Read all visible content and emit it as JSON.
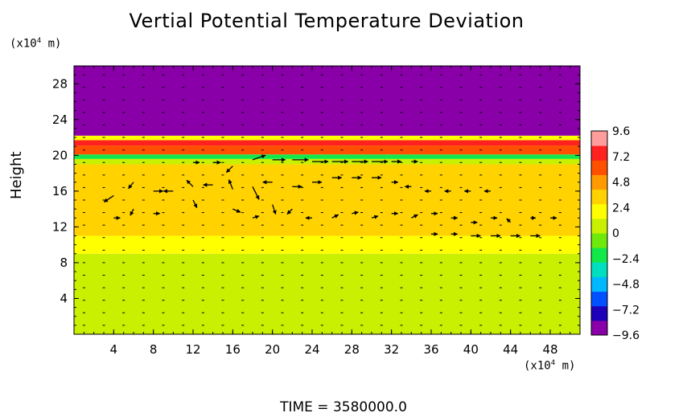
{
  "chart_data": {
    "type": "heatmap",
    "title": "Vertial Potential Temperature Deviation",
    "ylabel": "Height",
    "y_unit": "(x10",
    "y_unit_exp": "4",
    "y_unit_suffix": " m)",
    "x_unit": "(x10",
    "x_unit_exp": "4",
    "x_unit_suffix": " m)",
    "xlim": [
      0,
      51
    ],
    "ylim": [
      0,
      30
    ],
    "x_ticks": [
      4,
      8,
      12,
      16,
      20,
      24,
      28,
      32,
      36,
      40,
      44,
      48
    ],
    "x_tick_labels": [
      "4",
      "8",
      "12",
      "16",
      "20",
      "24",
      "28",
      "32",
      "36",
      "40",
      "44",
      "48"
    ],
    "y_ticks": [
      4,
      8,
      12,
      16,
      20,
      24,
      28
    ],
    "y_tick_labels": [
      "4",
      "8",
      "12",
      "16",
      "20",
      "24",
      "28"
    ],
    "colorbar": {
      "min": -9.6,
      "max": 9.6,
      "ticks": [
        9.6,
        7.2,
        4.8,
        2.4,
        0,
        -2.4,
        -4.8,
        -7.2,
        -9.6
      ],
      "tick_labels": [
        "9.6",
        "7.2",
        "4.8",
        "2.4",
        "0",
        "−2.4",
        "−4.8",
        "−7.2",
        "−9.6"
      ],
      "colors": [
        "#8a00a8",
        "#1d00b8",
        "#0050ff",
        "#00b8ff",
        "#00e0c0",
        "#12e84a",
        "#6fe80c",
        "#c8f000",
        "#ffff00",
        "#ffd200",
        "#ff9b00",
        "#ff5000",
        "#ff2020",
        "#ff9c9c"
      ]
    },
    "layers": [
      {
        "y0": 0,
        "y1": 9,
        "value": 0.5
      },
      {
        "y0": 9,
        "y1": 11,
        "value": 1.8
      },
      {
        "y0": 11,
        "y1": 15,
        "value": 3.3
      },
      {
        "y0": 15,
        "y1": 19,
        "value": 3.8
      },
      {
        "y0": 19,
        "y1": 19.6,
        "value": 1.0
      },
      {
        "y0": 19.6,
        "y1": 20.1,
        "value": -1.5
      },
      {
        "y0": 20.1,
        "y1": 21.1,
        "value": 6.0
      },
      {
        "y0": 21.1,
        "y1": 21.7,
        "value": 8.0
      },
      {
        "y0": 21.7,
        "y1": 22.2,
        "value": 2.0
      },
      {
        "y0": 22.2,
        "y1": 30,
        "value": -9.6
      }
    ],
    "vectors": {
      "note_fields": "x, y in 10^4 m; u, w arrow components",
      "items": [
        [
          18,
          19.5,
          2.0,
          0.7
        ],
        [
          20,
          19.5,
          2.0,
          0.0
        ],
        [
          22,
          19.5,
          2.5,
          0.0
        ],
        [
          24,
          19.3,
          2.5,
          0.0
        ],
        [
          26,
          19.3,
          2.5,
          0.0
        ],
        [
          28,
          19.3,
          2.5,
          0.0
        ],
        [
          30,
          19.3,
          2.5,
          0.0
        ],
        [
          32,
          19.3,
          1.5,
          0.0
        ],
        [
          34,
          19.3,
          1.0,
          0.0
        ],
        [
          12,
          19.2,
          1.0,
          0.0
        ],
        [
          14,
          19.2,
          1.2,
          0.0
        ],
        [
          16,
          18.8,
          -1.0,
          -1.0
        ],
        [
          4,
          15.5,
          -1.5,
          -1.0
        ],
        [
          6,
          17.0,
          -0.8,
          -1.0
        ],
        [
          8,
          16.0,
          1.5,
          0.0
        ],
        [
          10,
          16.0,
          -1.5,
          0.0
        ],
        [
          12,
          16.5,
          -1.0,
          1.0
        ],
        [
          14,
          16.7,
          -1.5,
          0.0
        ],
        [
          16,
          16.2,
          -0.6,
          1.5
        ],
        [
          18,
          16.5,
          1.0,
          -2.0
        ],
        [
          20,
          17.0,
          -1.5,
          0.0
        ],
        [
          22,
          16.5,
          1.5,
          0.0
        ],
        [
          24,
          17.0,
          1.5,
          0.0
        ],
        [
          26,
          17.5,
          1.5,
          0.0
        ],
        [
          28,
          17.5,
          1.5,
          0.0
        ],
        [
          30,
          17.5,
          1.5,
          0.0
        ],
        [
          32,
          17.0,
          1.0,
          0.0
        ],
        [
          34,
          16.5,
          -1.0,
          0.0
        ],
        [
          36,
          16.0,
          -1.0,
          0.0
        ],
        [
          38,
          16.0,
          -1.0,
          0.0
        ],
        [
          40,
          16.0,
          -1.0,
          0.0
        ],
        [
          42,
          16.0,
          -1.0,
          0.0
        ],
        [
          4,
          13.0,
          1.0,
          0.0
        ],
        [
          6,
          14.0,
          -0.5,
          -1.0
        ],
        [
          8,
          13.5,
          1.0,
          0.0
        ],
        [
          12,
          15.0,
          0.6,
          -1.2
        ],
        [
          16,
          14.0,
          1.2,
          -0.5
        ],
        [
          18,
          13.0,
          1.0,
          0.3
        ],
        [
          20,
          14.5,
          0.5,
          -1.5
        ],
        [
          22,
          14.0,
          -0.8,
          -0.8
        ],
        [
          24,
          13.0,
          -1.0,
          0.0
        ],
        [
          26,
          13.0,
          1.0,
          0.5
        ],
        [
          28,
          13.5,
          1.0,
          0.2
        ],
        [
          30,
          13.0,
          1.0,
          0.3
        ],
        [
          32,
          13.5,
          1.0,
          0.0
        ],
        [
          34,
          13.0,
          1.0,
          0.5
        ],
        [
          36,
          13.5,
          1.0,
          0.0
        ],
        [
          38,
          13.0,
          1.0,
          0.0
        ],
        [
          40,
          12.5,
          1.0,
          0.0
        ],
        [
          42,
          13.0,
          1.0,
          0.0
        ],
        [
          44,
          12.5,
          -0.6,
          0.6
        ],
        [
          46,
          13.0,
          0.8,
          0.0
        ],
        [
          48,
          13.0,
          1.0,
          0.0
        ],
        [
          40,
          11.0,
          1.5,
          0.0
        ],
        [
          42,
          11.0,
          1.5,
          0.0
        ],
        [
          44,
          11.0,
          1.5,
          0.0
        ],
        [
          46,
          11.0,
          1.5,
          0.0
        ],
        [
          36,
          11.2,
          1.0,
          0.0
        ],
        [
          38,
          11.2,
          1.0,
          0.0
        ]
      ]
    },
    "time_label": "TIME  =  3580000.0"
  }
}
